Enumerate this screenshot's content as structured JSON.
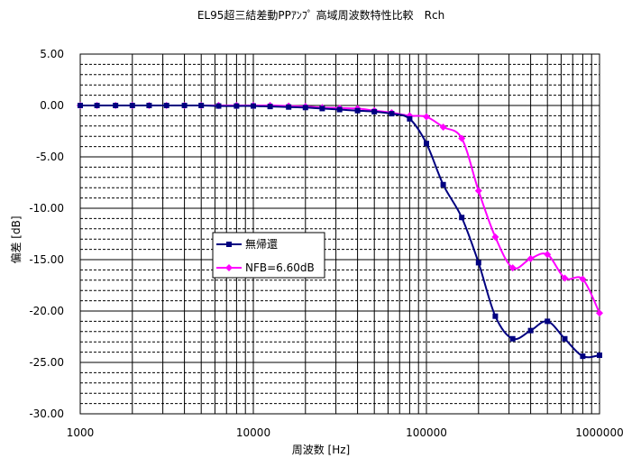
{
  "chart_data": {
    "type": "line",
    "title": "EL95超三結差動PPｱﾝﾌﾟ 高域周波数特性比較　Rch",
    "xlabel": "周波数 [Hz]",
    "ylabel": "偏差 [dB]",
    "x_scale": "log",
    "xlim": [
      1000,
      1000000
    ],
    "ylim": [
      -30,
      5
    ],
    "x_ticks": [
      "1000",
      "10000",
      "100000",
      "1000000"
    ],
    "y_ticks": [
      "5.00",
      "0.00",
      "-5.00",
      "-10.00",
      "-15.00",
      "-20.00",
      "-25.00",
      "-30.00"
    ],
    "grid": true,
    "legend_position": "center-left",
    "series": [
      {
        "name": "無帰還",
        "color": "#000080",
        "marker": "square",
        "x": [
          1000,
          1250,
          1600,
          2000,
          2500,
          3150,
          4000,
          5000,
          6300,
          8000,
          10000,
          12500,
          16000,
          20000,
          25000,
          31500,
          40000,
          50000,
          63000,
          80000,
          100000,
          125000,
          160000,
          200000,
          250000,
          315000,
          400000,
          500000,
          630000,
          800000,
          1000000
        ],
        "y": [
          0.0,
          0.0,
          0.0,
          0.0,
          0.0,
          0.0,
          0.0,
          0.0,
          -0.05,
          -0.05,
          -0.05,
          -0.1,
          -0.15,
          -0.2,
          -0.3,
          -0.4,
          -0.5,
          -0.6,
          -0.8,
          -1.3,
          -3.7,
          -7.7,
          -10.9,
          -15.3,
          -20.5,
          -22.7,
          -21.9,
          -21.0,
          -22.7,
          -24.4,
          -24.3
        ]
      },
      {
        "name": "NFB=6.60dB",
        "color": "#ff00ff",
        "marker": "diamond",
        "x": [
          1000,
          1250,
          1600,
          2000,
          2500,
          3150,
          4000,
          5000,
          6300,
          8000,
          10000,
          12500,
          16000,
          20000,
          25000,
          31500,
          40000,
          50000,
          63000,
          80000,
          100000,
          125000,
          160000,
          200000,
          250000,
          315000,
          400000,
          500000,
          630000,
          800000,
          1000000
        ],
        "y": [
          0.0,
          0.0,
          0.0,
          0.0,
          0.0,
          0.0,
          0.0,
          0.0,
          0.0,
          0.0,
          0.0,
          0.0,
          -0.05,
          -0.1,
          -0.2,
          -0.25,
          -0.3,
          -0.5,
          -0.7,
          -1.0,
          -1.1,
          -2.1,
          -3.2,
          -8.3,
          -12.8,
          -15.8,
          -14.9,
          -14.5,
          -16.8,
          -16.9,
          -20.2
        ]
      }
    ]
  }
}
